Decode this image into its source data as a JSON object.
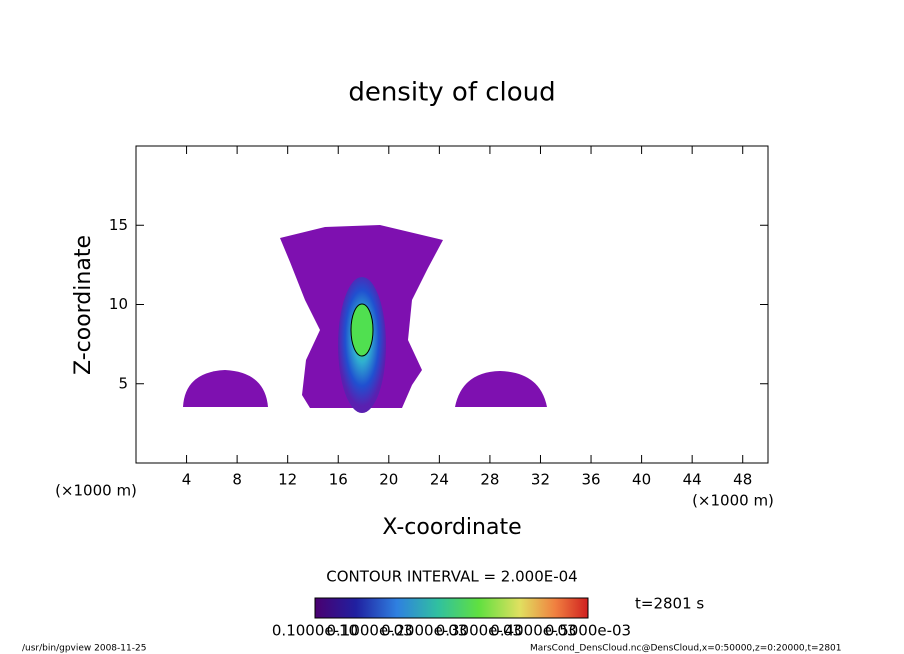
{
  "chart_data": {
    "type": "contour",
    "title": "density of cloud",
    "x_label": "X-coordinate",
    "y_label": "Z-coordinate",
    "x_unit": "(×1000 m)",
    "xlim": [
      0,
      50
    ],
    "xticks": [
      4,
      8,
      12,
      16,
      20,
      24,
      28,
      32,
      36,
      40,
      44,
      48
    ],
    "ylim": [
      0,
      20
    ],
    "yticks": [
      5,
      10,
      15
    ],
    "contour_interval": "CONTOUR INTERVAL = 2.000E-04",
    "time": "t=2801 s",
    "colorbar_labels": [
      "0.1000e-10",
      "0.1000e-03",
      "0.2000e-03",
      "0.3000e-03",
      "0.4000e-03",
      "0.5000e-03"
    ],
    "footer_left": "/usr/bin/gpview  2008-11-25",
    "footer_right": "MarsCond_DensCloud.nc@DensCloud,x=0:50000,z=0:20000,t=2801"
  }
}
